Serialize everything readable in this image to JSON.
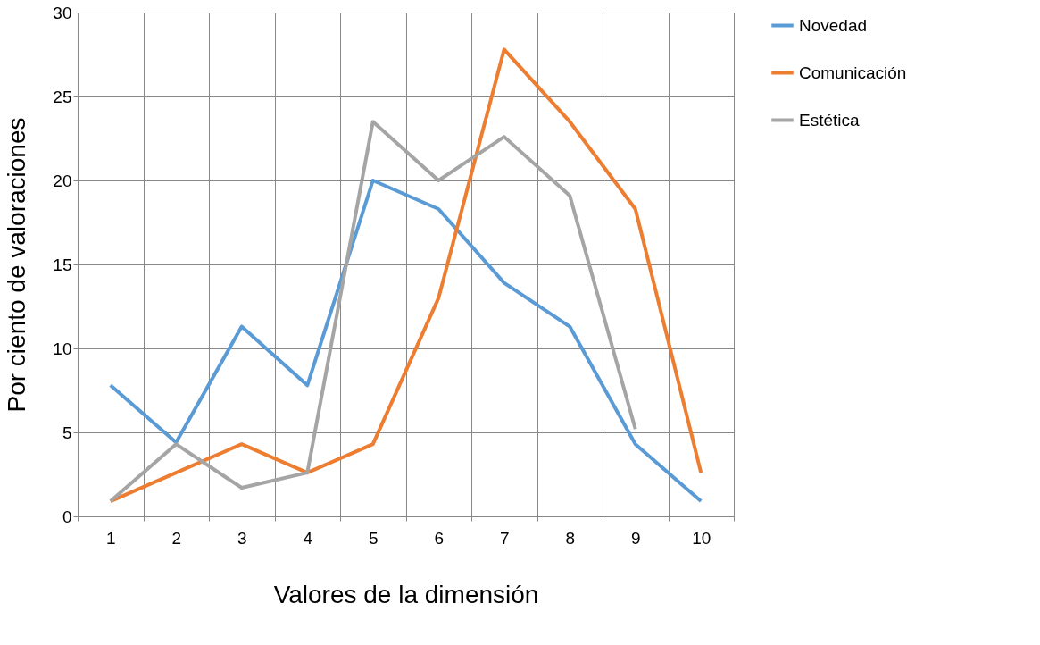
{
  "chart_data": {
    "type": "line",
    "xlabel": "Valores de la dimensión",
    "ylabel": "Por ciento de valoraciones",
    "categories": [
      "1",
      "2",
      "3",
      "4",
      "5",
      "6",
      "7",
      "8",
      "9",
      "10"
    ],
    "series": [
      {
        "name": "Novedad",
        "color": "#5b9bd5",
        "values": [
          7.8,
          4.4,
          11.3,
          7.8,
          20,
          18.3,
          13.9,
          11.3,
          4.3,
          0.9
        ]
      },
      {
        "name": "Comunicación",
        "color": "#ed7d31",
        "values": [
          0.9,
          2.6,
          4.3,
          2.6,
          4.3,
          13,
          27.8,
          23.5,
          18.3,
          2.6
        ]
      },
      {
        "name": "Estética",
        "color": "#a5a5a5",
        "values": [
          0.9,
          4.3,
          1.7,
          2.6,
          23.5,
          20,
          22.6,
          19.1,
          5.2,
          null
        ]
      }
    ],
    "ylim": [
      0,
      30
    ],
    "yticks": [
      0,
      5,
      10,
      15,
      20,
      25,
      30
    ],
    "grid": true,
    "legend": "right",
    "marker": "none",
    "line_style": "solid"
  }
}
